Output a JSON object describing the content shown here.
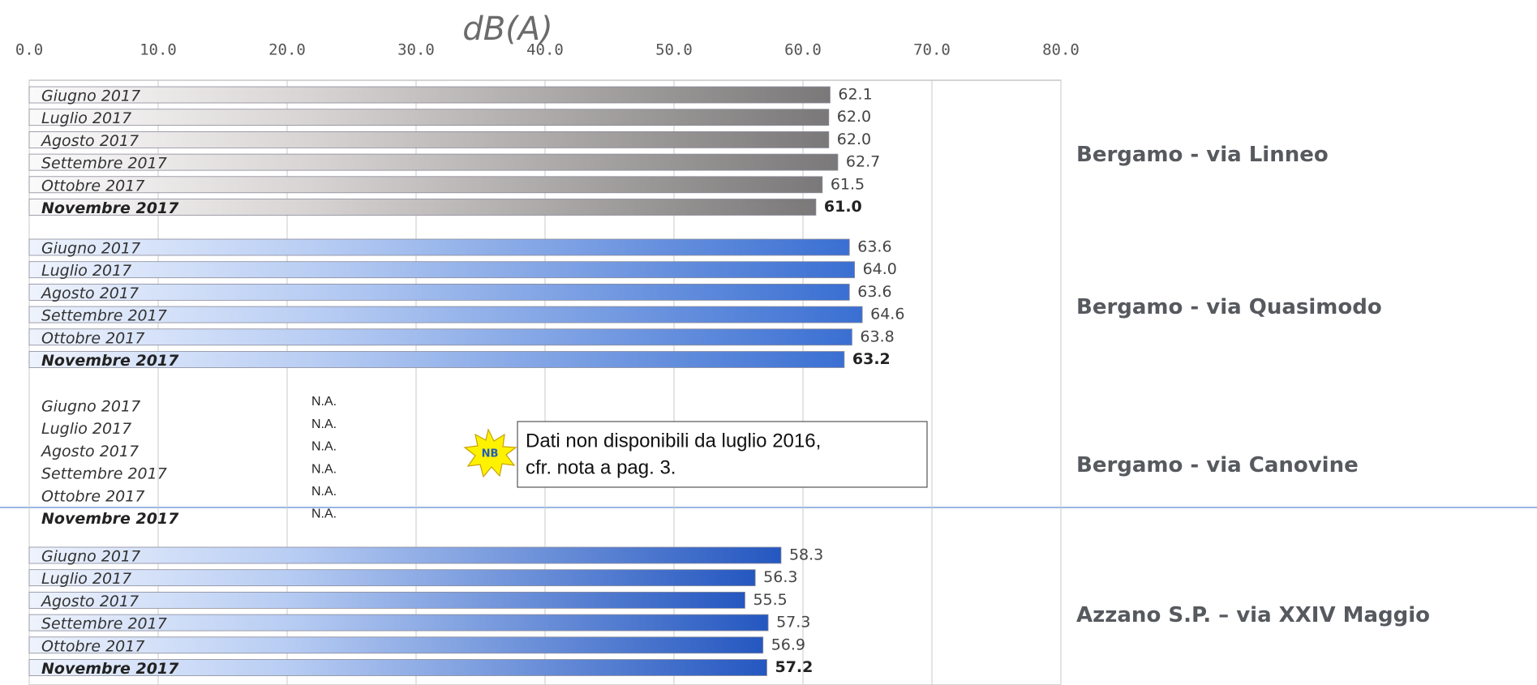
{
  "chart_data": {
    "type": "bar",
    "title": "dB(A)",
    "xlim": [
      0,
      80
    ],
    "xticks": [
      {
        "value": 0,
        "label": "0.0"
      },
      {
        "value": 10,
        "label": "10.0"
      },
      {
        "value": 20,
        "label": "20.0"
      },
      {
        "value": 30,
        "label": "30.0"
      },
      {
        "value": 40,
        "label": "40.0"
      },
      {
        "value": 50,
        "label": "50.0"
      },
      {
        "value": 60,
        "label": "60.0"
      },
      {
        "value": 70,
        "label": "70.0"
      },
      {
        "value": 80,
        "label": "80.0"
      }
    ],
    "grid": true,
    "groups": [
      {
        "name": "Bergamo - via Linneo",
        "color": "#7a7878",
        "categories": [
          "Giugno 2017",
          "Luglio 2017",
          "Agosto 2017",
          "Settembre 2017",
          "Ottobre 2017",
          "Novembre 2017"
        ],
        "values": [
          62.1,
          62.0,
          62.0,
          62.7,
          61.5,
          61.0
        ],
        "value_labels": [
          "62.1",
          "62.0",
          "62.0",
          "62.7",
          "61.5",
          "61.0"
        ]
      },
      {
        "name": "Bergamo - via Quasimodo",
        "color": "#3a6fd2",
        "categories": [
          "Giugno 2017",
          "Luglio 2017",
          "Agosto 2017",
          "Settembre 2017",
          "Ottobre 2017",
          "Novembre 2017"
        ],
        "values": [
          63.6,
          64.0,
          63.6,
          64.6,
          63.8,
          63.2
        ],
        "value_labels": [
          "63.6",
          "64.0",
          "63.6",
          "64.6",
          "63.8",
          "63.2"
        ]
      },
      {
        "name": "Bergamo - via Canovine",
        "color": "#3a6fd2",
        "categories": [
          "Giugno 2017",
          "Luglio 2017",
          "Agosto 2017",
          "Settembre 2017",
          "Ottobre 2017",
          "Novembre 2017"
        ],
        "values": [
          null,
          null,
          null,
          null,
          null,
          null
        ],
        "value_labels": [
          "N.A.",
          "N.A.",
          "N.A.",
          "N.A.",
          "N.A.",
          "N.A."
        ]
      },
      {
        "name": "Azzano S.P. – via XXIV Maggio",
        "color": "#2457c0",
        "categories": [
          "Giugno 2017",
          "Luglio 2017",
          "Agosto 2017",
          "Settembre 2017",
          "Ottobre 2017",
          "Novembre 2017"
        ],
        "values": [
          58.3,
          56.3,
          55.5,
          57.3,
          56.9,
          57.2
        ],
        "value_labels": [
          "58.3",
          "56.3",
          "55.5",
          "57.3",
          "56.9",
          "57.2"
        ]
      }
    ],
    "annotation": {
      "badge": "NB",
      "text": [
        "Dati non disponibili da luglio 2016,",
        "cfr. nota a pag. 3."
      ]
    }
  }
}
